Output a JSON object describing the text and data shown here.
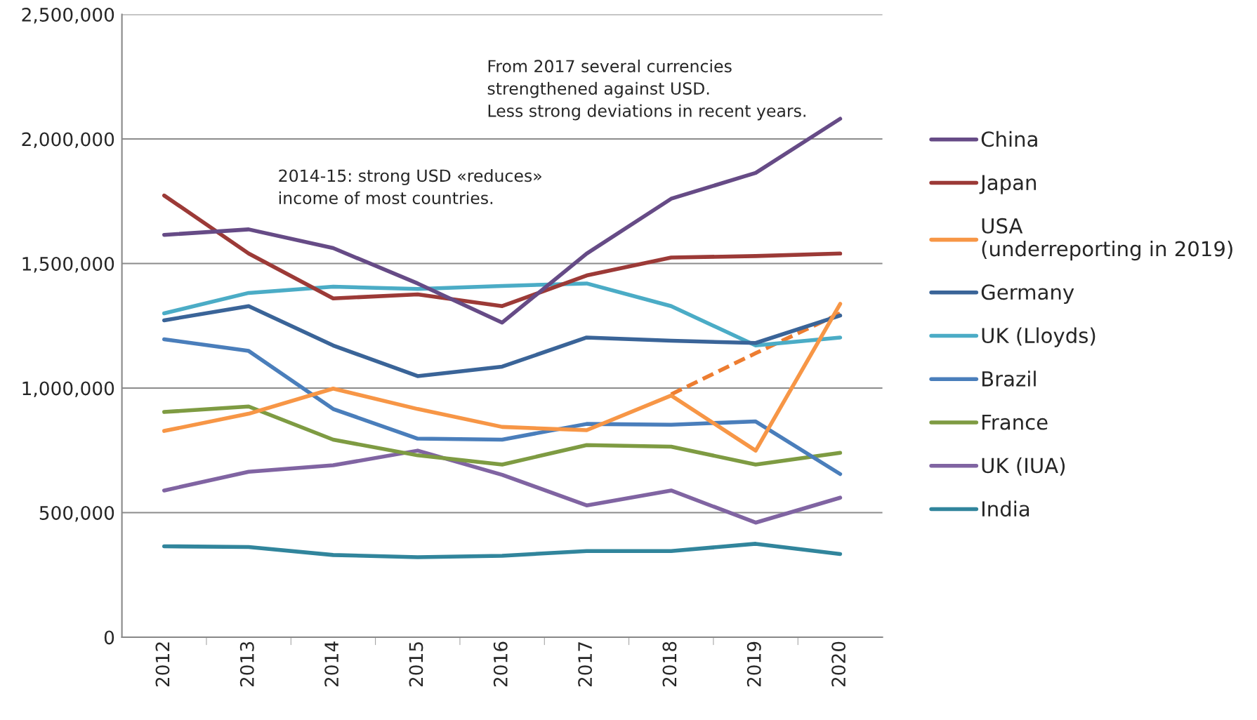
{
  "chart_data": {
    "type": "line",
    "categories": [
      "2012",
      "2013",
      "2014",
      "2015",
      "2016",
      "2017",
      "2018",
      "2019",
      "2020"
    ],
    "series": [
      {
        "name": "China",
        "color": "#664b86",
        "values": [
          1615000,
          1637000,
          1562000,
          1420000,
          1263000,
          1540000,
          1760000,
          1864000,
          2081000
        ]
      },
      {
        "name": "Japan",
        "color": "#9c3a37",
        "values": [
          1773000,
          1540000,
          1360000,
          1376000,
          1329000,
          1452000,
          1524000,
          1530000,
          1540000
        ]
      },
      {
        "name": "USA\n(underreporting in 2019)",
        "color": "#f79646",
        "values": [
          828000,
          897000,
          998000,
          916000,
          844000,
          831000,
          970000,
          749000,
          1338000
        ]
      },
      {
        "name": "Germany",
        "color": "#3a6498",
        "values": [
          1272000,
          1329000,
          1171000,
          1048000,
          1086000,
          1203000,
          1190000,
          1181000,
          1291000
        ]
      },
      {
        "name": "UK (Lloyds)",
        "color": "#4bacc6",
        "values": [
          1300000,
          1382000,
          1407000,
          1398000,
          1410000,
          1420000,
          1329000,
          1171000,
          1203000
        ]
      },
      {
        "name": "Brazil",
        "color": "#4a7ebb",
        "values": [
          1196000,
          1149000,
          916000,
          797000,
          793000,
          856000,
          853000,
          866000,
          655000
        ]
      },
      {
        "name": "France",
        "color": "#7e9b42",
        "values": [
          904000,
          926000,
          793000,
          730000,
          693000,
          771000,
          765000,
          693000,
          740000
        ]
      },
      {
        "name": "UK (IUA)",
        "color": "#8064a2",
        "values": [
          589000,
          664000,
          690000,
          749000,
          652000,
          529000,
          589000,
          460000,
          560000
        ]
      },
      {
        "name": "India",
        "color": "#31859c",
        "values": [
          365000,
          362000,
          330000,
          321000,
          327000,
          346000,
          346000,
          375000,
          334000
        ]
      },
      {
        "color": "#ed7d31",
        "line_style": "dashed",
        "values": [
          null,
          null,
          null,
          null,
          null,
          null,
          975000,
          1140000,
          1300000
        ]
      }
    ],
    "ylim": [
      0,
      2500000
    ],
    "yticks": [
      {
        "value": 0,
        "label": "0"
      },
      {
        "value": 500000,
        "label": "500,000"
      },
      {
        "value": 1000000,
        "label": "1,000,000"
      },
      {
        "value": 1500000,
        "label": "1,500,000"
      },
      {
        "value": 2000000,
        "label": "2,000,000"
      },
      {
        "value": 2500000,
        "label": "2,500,000"
      }
    ],
    "grid": "y",
    "legend": "right",
    "marker": "none",
    "line_style": "solid",
    "annotations": [
      "2014-15: strong USD «reduces»\nincome of most countries.",
      "From 2017 several currencies\nstrengthened against USD.\nLess strong deviations in recent years."
    ]
  }
}
